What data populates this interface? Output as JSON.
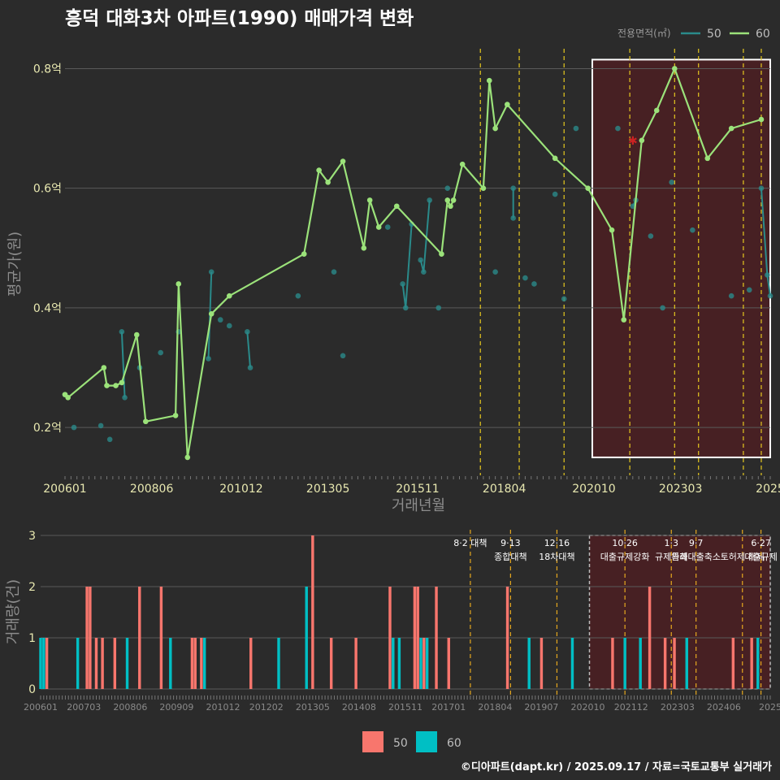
{
  "chart_data": [
    {
      "type": "line",
      "title": "흥덕 대화3차 아파트(1990) 매매가격 변화",
      "xlabel": "거래년월",
      "ylabel": "평균가(원)",
      "ylim": [
        0.12,
        0.84
      ],
      "yticks": [
        {
          "value": 0.2,
          "label": "0.2억"
        },
        {
          "value": 0.4,
          "label": "0.4억"
        },
        {
          "value": 0.6,
          "label": "0.6억"
        },
        {
          "value": 0.8,
          "label": "0.8억"
        }
      ],
      "xlim": [
        "2006-01",
        "2025-09"
      ],
      "xticks": [
        "200601",
        "200806",
        "201012",
        "201305",
        "201511",
        "201804",
        "202010",
        "202303",
        "2025"
      ],
      "grid": true,
      "legend": {
        "title": "전용면적(㎡)",
        "position": "top-right",
        "entries": [
          {
            "name": "50",
            "color": "#2a8a8a"
          },
          {
            "name": "60",
            "color": "#9be27a"
          }
        ]
      },
      "highlight_period": [
        "2020-10",
        "2025-09"
      ],
      "policy_event_dates": [
        "2017-08",
        "2018-09",
        "2019-12",
        "2021-10",
        "2023-01",
        "2023-09",
        "2024-12",
        "2025-06"
      ],
      "marked_point": {
        "date": "2021-11",
        "value": 0.68,
        "color": "#cc2222"
      },
      "series": [
        {
          "name": "50",
          "color": "#2a8a8a",
          "points": [
            [
              "2006-01",
              0.255
            ],
            [
              "2006-04",
              0.2
            ],
            [
              "2007-01",
              0.203
            ],
            [
              "2007-04",
              0.18
            ],
            [
              "2007-08",
              0.36
            ],
            [
              "2007-09",
              0.25
            ],
            [
              "2008-02",
              0.3
            ],
            [
              "2008-09",
              0.325
            ],
            [
              "2009-03",
              0.36
            ],
            [
              "2010-01",
              0.315
            ],
            [
              "2010-02",
              0.46
            ],
            [
              "2010-05",
              0.38
            ],
            [
              "2010-08",
              0.37
            ],
            [
              "2011-02",
              0.36
            ],
            [
              "2011-03",
              0.3
            ],
            [
              "2012-07",
              0.42
            ],
            [
              "2013-07",
              0.46
            ],
            [
              "2013-10",
              0.32
            ],
            [
              "2015-01",
              0.535
            ],
            [
              "2015-06",
              0.44
            ],
            [
              "2015-07",
              0.4
            ],
            [
              "2015-09",
              0.54
            ],
            [
              "2015-12",
              0.48
            ],
            [
              "2016-01",
              0.46
            ],
            [
              "2016-03",
              0.58
            ],
            [
              "2016-06",
              0.4
            ],
            [
              "2016-09",
              0.6
            ],
            [
              "2018-01",
              0.46
            ],
            [
              "2018-07",
              0.6
            ],
            [
              "2018-07",
              0.55
            ],
            [
              "2018-11",
              0.45
            ],
            [
              "2019-02",
              0.44
            ],
            [
              "2019-09",
              0.59
            ],
            [
              "2019-12",
              0.415
            ],
            [
              "2020-04",
              0.7
            ],
            [
              "2021-06",
              0.7
            ],
            [
              "2021-11",
              0.57
            ],
            [
              "2021-12",
              0.58
            ],
            [
              "2022-05",
              0.52
            ],
            [
              "2022-09",
              0.4
            ],
            [
              "2022-12",
              0.61
            ],
            [
              "2023-07",
              0.53
            ],
            [
              "2024-08",
              0.42
            ],
            [
              "2025-02",
              0.43
            ],
            [
              "2025-06",
              0.6
            ],
            [
              "2025-08",
              0.455
            ],
            [
              "2025-09",
              0.42
            ]
          ]
        },
        {
          "name": "60",
          "color": "#9be27a",
          "points": [
            [
              "2006-01",
              0.255
            ],
            [
              "2006-02",
              0.25
            ],
            [
              "2007-02",
              0.3
            ],
            [
              "2007-03",
              0.27
            ],
            [
              "2007-06",
              0.27
            ],
            [
              "2007-08",
              0.275
            ],
            [
              "2008-01",
              0.355
            ],
            [
              "2008-04",
              0.21
            ],
            [
              "2009-02",
              0.22
            ],
            [
              "2009-03",
              0.44
            ],
            [
              "2009-06",
              0.15
            ],
            [
              "2010-02",
              0.39
            ],
            [
              "2010-08",
              0.42
            ],
            [
              "2012-09",
              0.49
            ],
            [
              "2013-02",
              0.63
            ],
            [
              "2013-05",
              0.61
            ],
            [
              "2013-10",
              0.645
            ],
            [
              "2014-05",
              0.5
            ],
            [
              "2014-07",
              0.58
            ],
            [
              "2014-10",
              0.535
            ],
            [
              "2015-04",
              0.57
            ],
            [
              "2016-07",
              0.49
            ],
            [
              "2016-09",
              0.58
            ],
            [
              "2016-10",
              0.57
            ],
            [
              "2016-11",
              0.58
            ],
            [
              "2017-02",
              0.64
            ],
            [
              "2017-09",
              0.6
            ],
            [
              "2017-11",
              0.78
            ],
            [
              "2018-01",
              0.7
            ],
            [
              "2018-05",
              0.74
            ],
            [
              "2019-09",
              0.65
            ],
            [
              "2020-08",
              0.6
            ],
            [
              "2021-04",
              0.53
            ],
            [
              "2021-08",
              0.38
            ],
            [
              "2022-02",
              0.68
            ],
            [
              "2022-07",
              0.73
            ],
            [
              "2023-01",
              0.8
            ],
            [
              "2023-12",
              0.65
            ],
            [
              "2024-08",
              0.7
            ],
            [
              "2025-06",
              0.715
            ]
          ]
        }
      ]
    },
    {
      "type": "bar",
      "ylabel": "거래량(건)",
      "ylim": [
        0,
        3
      ],
      "yticks": [
        "0",
        "1",
        "2",
        "3"
      ],
      "xticks": [
        "200601",
        "200703",
        "200806",
        "200909",
        "201012",
        "201202",
        "201305",
        "201408",
        "201511",
        "201701",
        "201804",
        "201907",
        "202010",
        "202112",
        "202303",
        "202406",
        "2025"
      ],
      "legend": {
        "position": "bottom",
        "entries": [
          {
            "name": "50",
            "color": "#f8766d"
          },
          {
            "name": "60",
            "color": "#00bfc4"
          }
        ]
      },
      "highlight_period": [
        "2020-10",
        "2025-09"
      ],
      "events": [
        {
          "date": "2017-08",
          "lines": [
            "8·2 대책"
          ]
        },
        {
          "date": "2018-09",
          "lines": [
            "9·13",
            "종합대책"
          ]
        },
        {
          "date": "2019-12",
          "lines": [
            "12·16",
            "18차대책"
          ]
        },
        {
          "date": "2021-10",
          "lines": [
            "10·26",
            "대출규제강화"
          ]
        },
        {
          "date": "2023-01",
          "lines": [
            "1·3",
            "규제완화"
          ]
        },
        {
          "date": "2023-09",
          "lines": [
            "9·7",
            "특례대출축소"
          ]
        },
        {
          "date": "2024-12",
          "lines": [
            "",
            "토허제 해제"
          ]
        },
        {
          "date": "2025-06",
          "lines": [
            "6·27",
            "대출규제"
          ]
        }
      ],
      "bars": {
        "50": [
          [
            "2006-03",
            1
          ],
          [
            "2007-04",
            2
          ],
          [
            "2007-05",
            2
          ],
          [
            "2007-07",
            1
          ],
          [
            "2007-09",
            1
          ],
          [
            "2008-01",
            1
          ],
          [
            "2008-09",
            2
          ],
          [
            "2009-04",
            2
          ],
          [
            "2010-02",
            1
          ],
          [
            "2010-03",
            1
          ],
          [
            "2010-05",
            1
          ],
          [
            "2011-09",
            1
          ],
          [
            "2013-05",
            3
          ],
          [
            "2013-11",
            1
          ],
          [
            "2014-07",
            1
          ],
          [
            "2015-06",
            2
          ],
          [
            "2016-02",
            2
          ],
          [
            "2016-03",
            2
          ],
          [
            "2016-05",
            1
          ],
          [
            "2016-09",
            2
          ],
          [
            "2017-01",
            1
          ],
          [
            "2018-08",
            2
          ],
          [
            "2019-07",
            1
          ],
          [
            "2021-06",
            1
          ],
          [
            "2022-06",
            2
          ],
          [
            "2022-11",
            1
          ],
          [
            "2023-02",
            1
          ],
          [
            "2024-09",
            1
          ],
          [
            "2025-03",
            1
          ]
        ],
        "60": [
          [
            "2006-01",
            1
          ],
          [
            "2006-02",
            1
          ],
          [
            "2007-01",
            1
          ],
          [
            "2008-05",
            1
          ],
          [
            "2009-07",
            1
          ],
          [
            "2010-06",
            1
          ],
          [
            "2012-06",
            1
          ],
          [
            "2013-03",
            2
          ],
          [
            "2015-07",
            1
          ],
          [
            "2015-09",
            1
          ],
          [
            "2016-04",
            1
          ],
          [
            "2016-06",
            1
          ],
          [
            "2019-03",
            1
          ],
          [
            "2020-05",
            1
          ],
          [
            "2021-10",
            1
          ],
          [
            "2022-03",
            1
          ],
          [
            "2023-06",
            1
          ],
          [
            "2025-05",
            1
          ]
        ]
      }
    }
  ],
  "footer": {
    "caption": "©디아파트(dapt.kr) / 2025.09.17 / 자료=국토교통부 실거래가"
  }
}
